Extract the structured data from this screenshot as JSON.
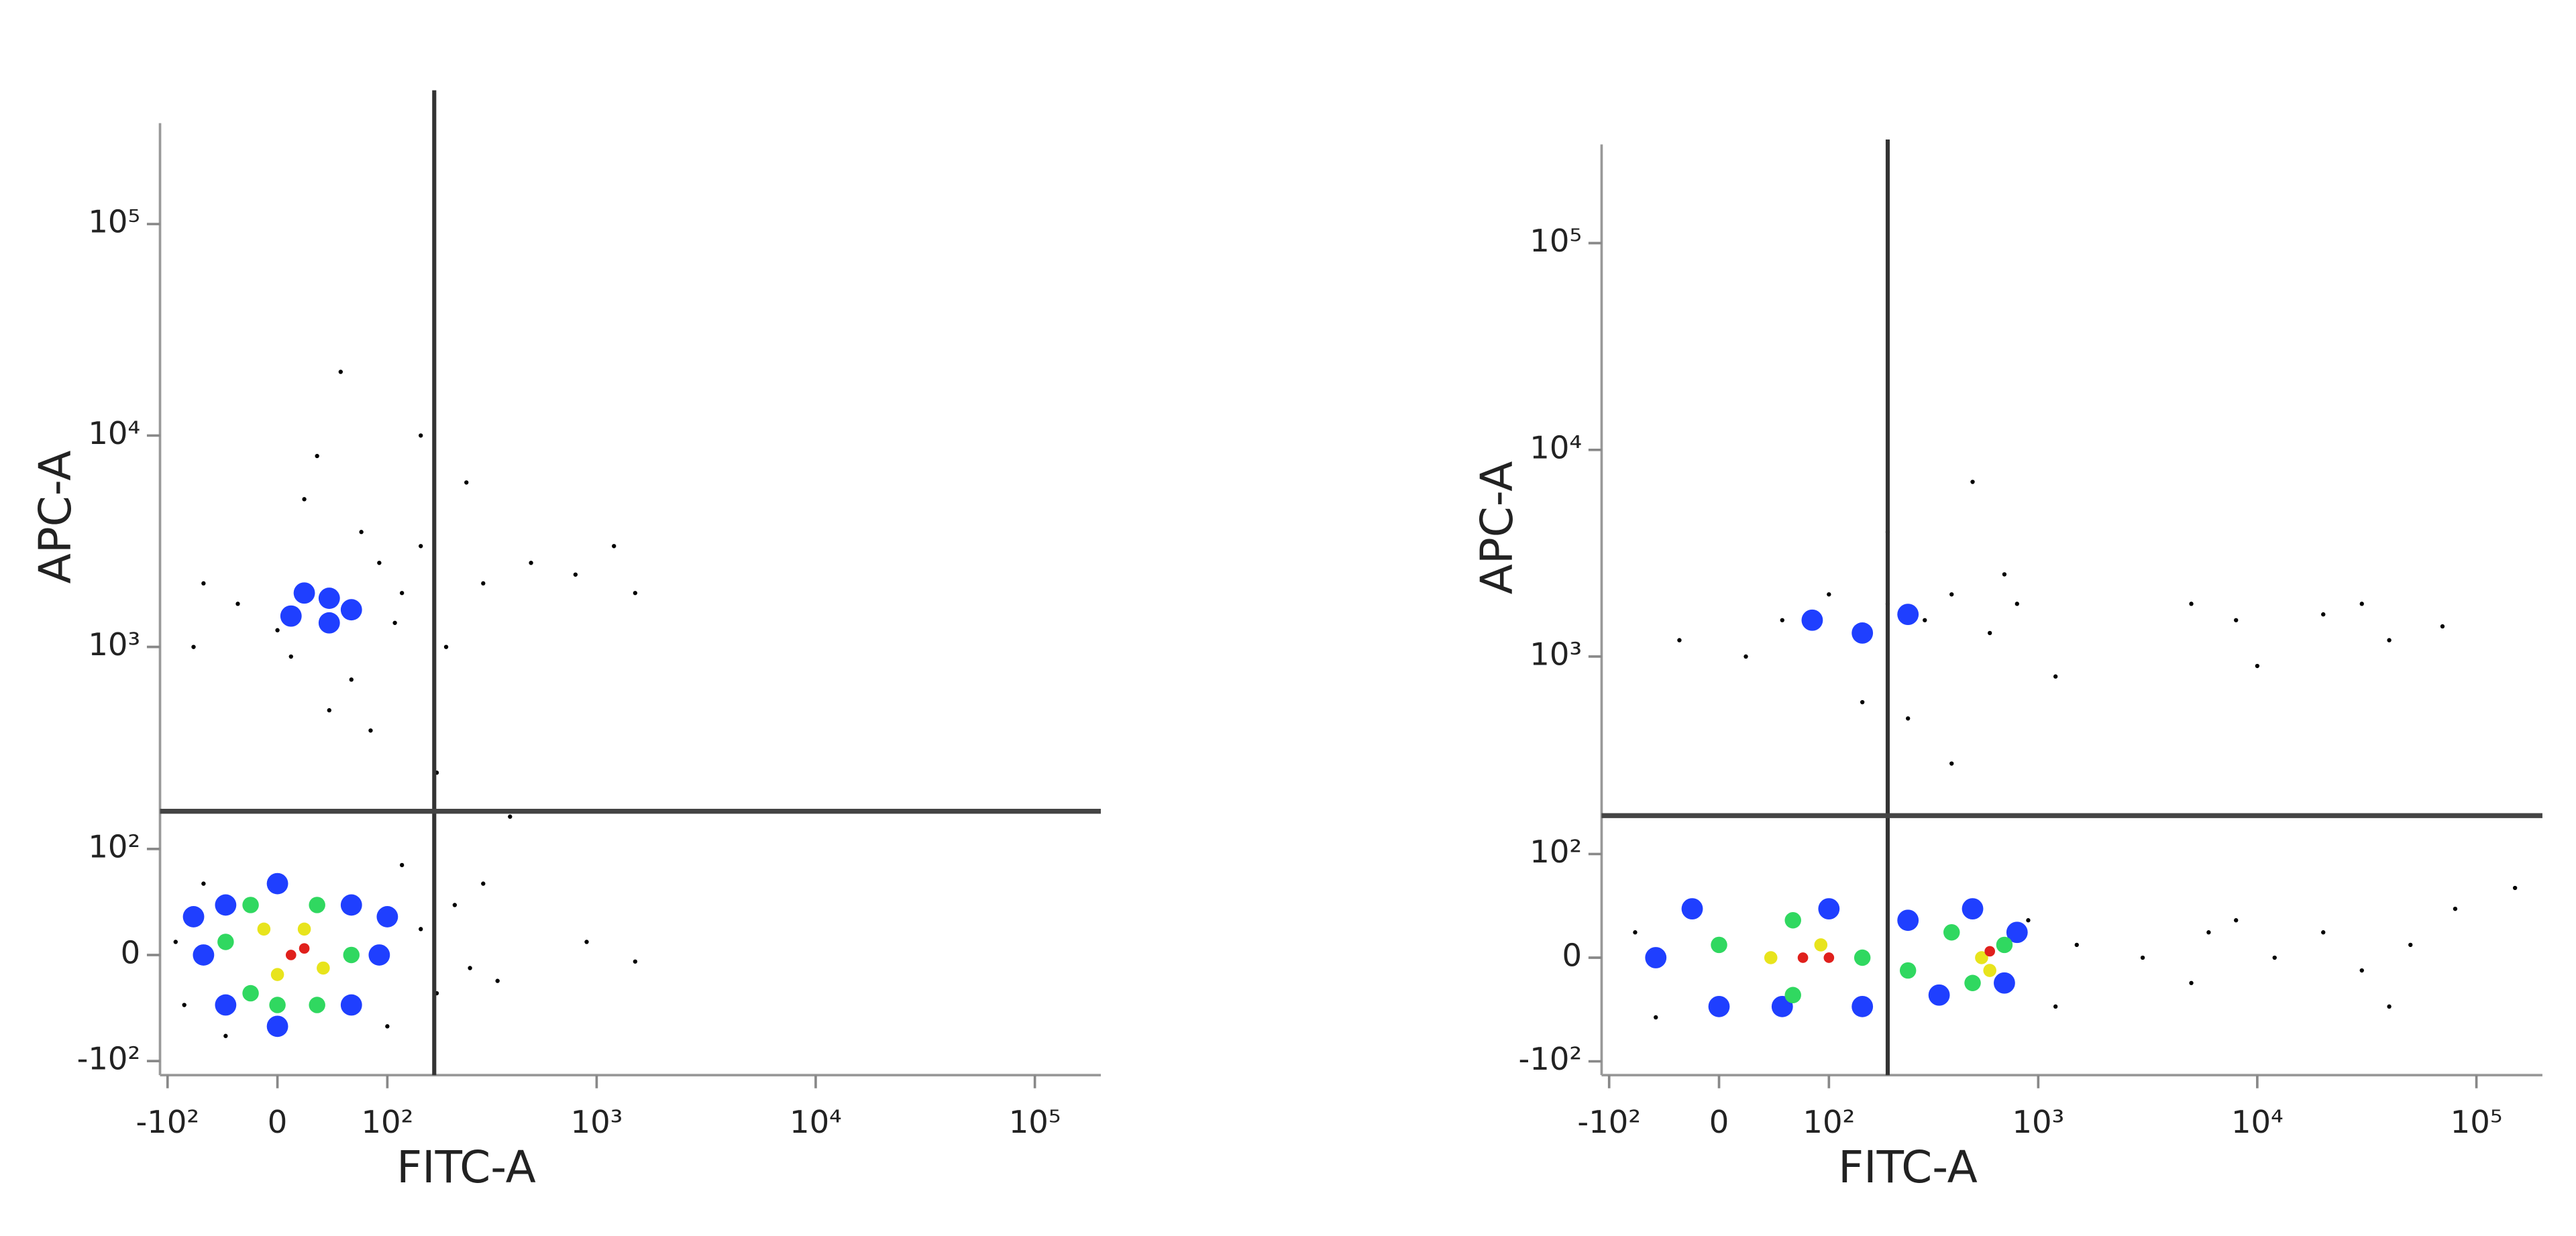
{
  "chart_data": [
    {
      "type": "scatter",
      "scale": "biexponential",
      "xlabel": "FITC-A",
      "ylabel": "APC-A",
      "xlim": [
        -110,
        200000
      ],
      "ylim": [
        -120,
        300000
      ],
      "xticks": [
        {
          "value": -100,
          "label": "-10²"
        },
        0,
        {
          "value": 100,
          "label": "10²"
        },
        {
          "value": 1000,
          "label": "10³"
        },
        {
          "value": 10000,
          "label": "10⁴"
        },
        {
          "value": 100000,
          "label": "10⁵"
        }
      ],
      "yticks": [
        {
          "value": -100,
          "label": "-10²"
        },
        0,
        {
          "value": 100,
          "label": "10²"
        },
        {
          "value": 1000,
          "label": "10³"
        },
        {
          "value": 10000,
          "label": "10⁴"
        },
        {
          "value": 100000,
          "label": "10⁵"
        }
      ],
      "gates": {
        "x": 175,
        "y": 160
      },
      "series": [
        {
          "color": "#000000",
          "x": [
            -80,
            -60,
            -40,
            150,
            180,
            220,
            260,
            300,
            350,
            900,
            1500,
            120,
            -90,
            100,
            0,
            10,
            60,
            90,
            120,
            150,
            200,
            300,
            500,
            800,
            1200,
            1500,
            -30,
            -60,
            40,
            80,
            30,
            20,
            150,
            50,
            250,
            400,
            -70,
            110,
            70,
            180
          ],
          "values": [
            -40,
            60,
            -70,
            20,
            -30,
            40,
            -10,
            60,
            -20,
            10,
            -5,
            80,
            10,
            -60,
            1200,
            900,
            700,
            2500,
            1800,
            3000,
            1000,
            2000,
            2500,
            2200,
            3000,
            1800,
            1600,
            2000,
            500,
            400,
            8000,
            5000,
            10000,
            20000,
            6000,
            150,
            1000,
            1300,
            3500,
            250
          ]
        },
        {
          "color": "#1f3fff",
          "x": [
            -60,
            -40,
            -40,
            0,
            0,
            60,
            60,
            90,
            100,
            -70,
            10,
            40,
            40,
            60,
            20
          ],
          "values": [
            0,
            40,
            -40,
            60,
            -60,
            40,
            -40,
            0,
            30,
            30,
            1400,
            1700,
            1300,
            1500,
            1800
          ]
        },
        {
          "color": "#30d860",
          "x": [
            -40,
            -20,
            -20,
            30,
            30,
            60,
            0
          ],
          "values": [
            10,
            40,
            -30,
            40,
            -40,
            0,
            -40
          ]
        },
        {
          "color": "#e8e41c",
          "x": [
            -10,
            20,
            0,
            35
          ],
          "values": [
            20,
            20,
            -15,
            -10
          ]
        },
        {
          "color": "#e0201c",
          "x": [
            10,
            20
          ],
          "values": [
            0,
            5
          ]
        }
      ]
    },
    {
      "type": "scatter",
      "scale": "biexponential",
      "xlabel": "FITC-A",
      "ylabel": "APC-A",
      "xlim": [
        -110,
        200000
      ],
      "ylim": [
        -120,
        300000
      ],
      "xticks": [
        {
          "value": -100,
          "label": "-10²"
        },
        0,
        {
          "value": 100,
          "label": "10²"
        },
        {
          "value": 1000,
          "label": "10³"
        },
        {
          "value": 10000,
          "label": "10⁴"
        },
        {
          "value": 100000,
          "label": "10⁵"
        }
      ],
      "yticks": [
        {
          "value": -100,
          "label": "-10²"
        },
        0,
        {
          "value": 100,
          "label": "10²"
        },
        {
          "value": 1000,
          "label": "10³"
        },
        {
          "value": 10000,
          "label": "10⁴"
        },
        {
          "value": 100000,
          "label": "10⁵"
        }
      ],
      "gates": {
        "x": 200,
        "y": 163
      },
      "series": [
        {
          "color": "#000000",
          "x": [
            -70,
            -50,
            900,
            1200,
            1500,
            5000,
            8000,
            12000,
            20000,
            30000,
            50000,
            80000,
            150000,
            6000,
            40000,
            3000,
            50,
            100,
            150,
            200,
            300,
            400,
            600,
            800,
            20,
            -30,
            150,
            250,
            400,
            200,
            500,
            700,
            1200,
            5000,
            8000,
            20000,
            30000,
            40000,
            10000,
            70000
          ],
          "values": [
            20,
            -50,
            30,
            -40,
            10,
            -20,
            30,
            0,
            20,
            -10,
            10,
            40,
            60,
            20,
            -40,
            0,
            1500,
            2000,
            1200,
            1800,
            1500,
            2000,
            1300,
            1800,
            1000,
            1200,
            600,
            500,
            300,
            4000,
            7000,
            2500,
            800,
            1800,
            1500,
            1600,
            1800,
            1200,
            900,
            1400
          ]
        },
        {
          "color": "#1f3fff",
          "x": [
            -50,
            -20,
            0,
            100,
            150,
            250,
            350,
            500,
            700,
            800,
            50,
            80,
            150,
            250
          ],
          "values": [
            0,
            40,
            -40,
            40,
            -40,
            30,
            -30,
            40,
            -20,
            20,
            -40,
            1500,
            1300,
            1600
          ]
        },
        {
          "color": "#30d860",
          "x": [
            0,
            60,
            60,
            150,
            250,
            400,
            500,
            700
          ],
          "values": [
            10,
            30,
            -30,
            0,
            -10,
            20,
            -20,
            10
          ]
        },
        {
          "color": "#e8e41c",
          "x": [
            40,
            90,
            550,
            600
          ],
          "values": [
            0,
            10,
            0,
            -10
          ]
        },
        {
          "color": "#e0201c",
          "x": [
            70,
            100,
            600
          ],
          "values": [
            0,
            0,
            5
          ]
        }
      ]
    }
  ]
}
